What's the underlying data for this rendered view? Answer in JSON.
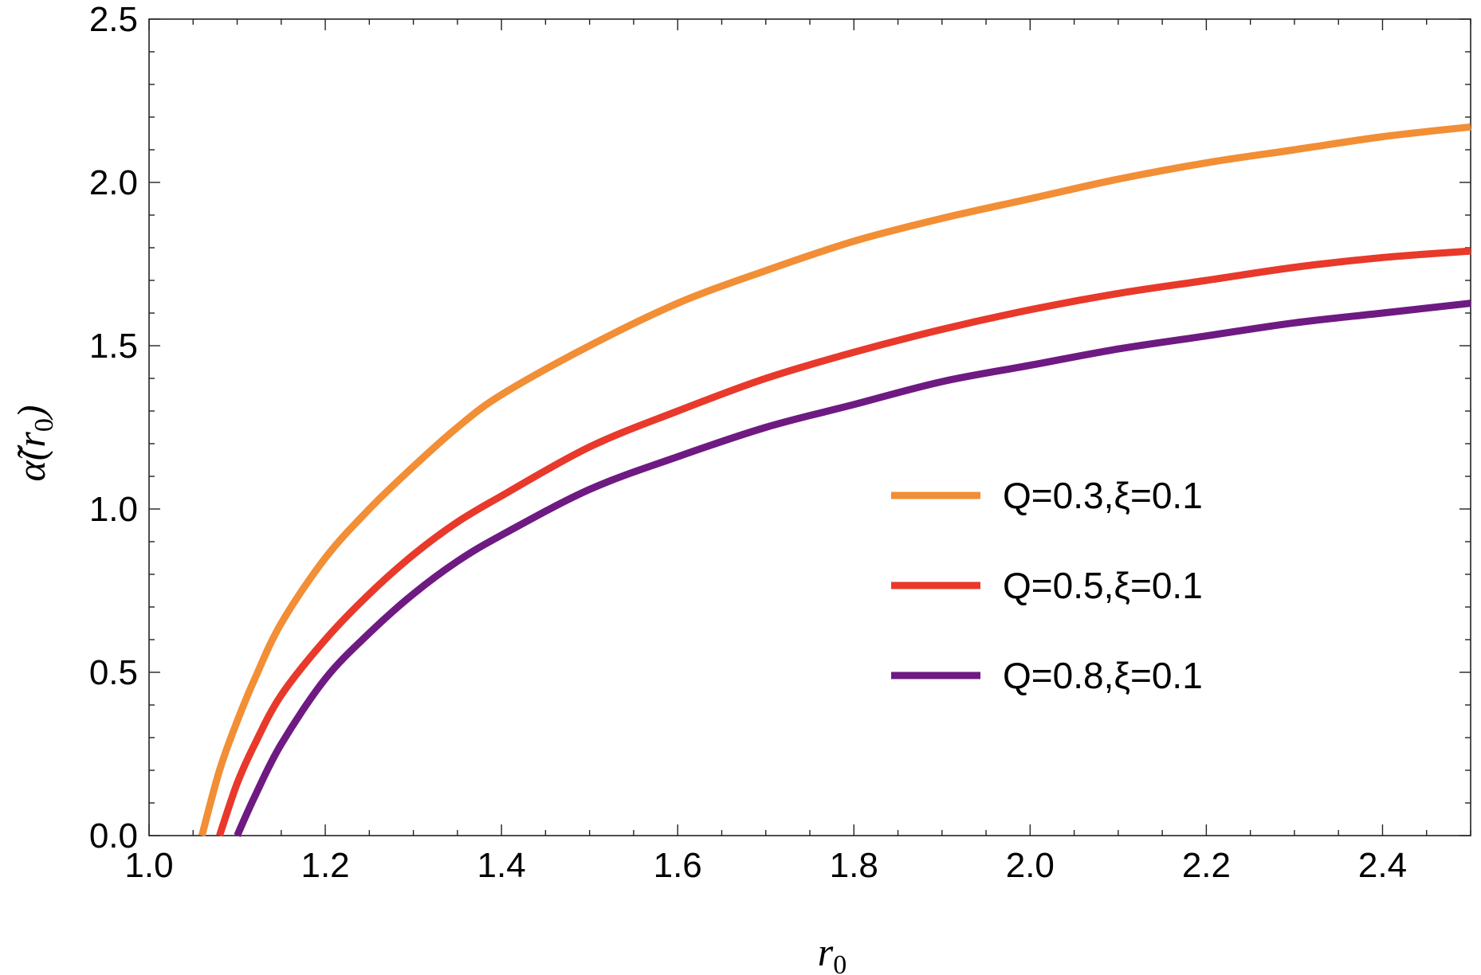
{
  "chart_data": {
    "type": "line",
    "xlabel": "r",
    "xlabel_sub": "0",
    "ylabel": "α̃(r",
    "ylabel_sub": "0",
    "ylabel_close": ")",
    "xlim": [
      1.0,
      2.5
    ],
    "ylim": [
      0.0,
      2.5
    ],
    "xticks": [
      1.0,
      1.2,
      1.4,
      1.6,
      1.8,
      2.0,
      2.2,
      2.4
    ],
    "xtick_labels": [
      "1.0",
      "1.2",
      "1.4",
      "1.6",
      "1.8",
      "2.0",
      "2.2",
      "2.4"
    ],
    "yticks": [
      0.0,
      0.5,
      1.0,
      1.5,
      2.0,
      2.5
    ],
    "ytick_labels": [
      "0.0",
      "0.5",
      "1.0",
      "1.5",
      "2.0",
      "2.5"
    ],
    "grid": false,
    "legend_placement": "center-right",
    "series": [
      {
        "name": "Q=0.3,ξ=0.1",
        "color": "#F28E35",
        "x": [
          1.06,
          1.08,
          1.1,
          1.12,
          1.15,
          1.2,
          1.25,
          1.3,
          1.35,
          1.4,
          1.5,
          1.6,
          1.7,
          1.8,
          1.9,
          2.0,
          2.1,
          2.2,
          2.3,
          2.4,
          2.5
        ],
        "y": [
          0.0,
          0.2,
          0.35,
          0.48,
          0.65,
          0.85,
          1.0,
          1.13,
          1.25,
          1.35,
          1.5,
          1.63,
          1.73,
          1.82,
          1.89,
          1.95,
          2.01,
          2.06,
          2.1,
          2.14,
          2.17
        ]
      },
      {
        "name": "Q=0.5,ξ=0.1",
        "color": "#E8392B",
        "x": [
          1.08,
          1.1,
          1.12,
          1.15,
          1.2,
          1.25,
          1.3,
          1.35,
          1.4,
          1.5,
          1.6,
          1.7,
          1.8,
          1.9,
          2.0,
          2.1,
          2.2,
          2.3,
          2.4,
          2.5
        ],
        "y": [
          0.0,
          0.16,
          0.28,
          0.43,
          0.6,
          0.74,
          0.86,
          0.96,
          1.04,
          1.19,
          1.3,
          1.4,
          1.48,
          1.55,
          1.61,
          1.66,
          1.7,
          1.74,
          1.77,
          1.79
        ]
      },
      {
        "name": "Q=0.8,ξ=0.1",
        "color": "#6E1A82",
        "x": [
          1.1,
          1.12,
          1.15,
          1.2,
          1.25,
          1.3,
          1.35,
          1.4,
          1.5,
          1.6,
          1.7,
          1.8,
          1.9,
          2.0,
          2.1,
          2.2,
          2.3,
          2.4,
          2.5
        ],
        "y": [
          0.0,
          0.12,
          0.28,
          0.48,
          0.62,
          0.74,
          0.84,
          0.92,
          1.06,
          1.16,
          1.25,
          1.32,
          1.39,
          1.44,
          1.49,
          1.53,
          1.57,
          1.6,
          1.63
        ]
      }
    ]
  }
}
